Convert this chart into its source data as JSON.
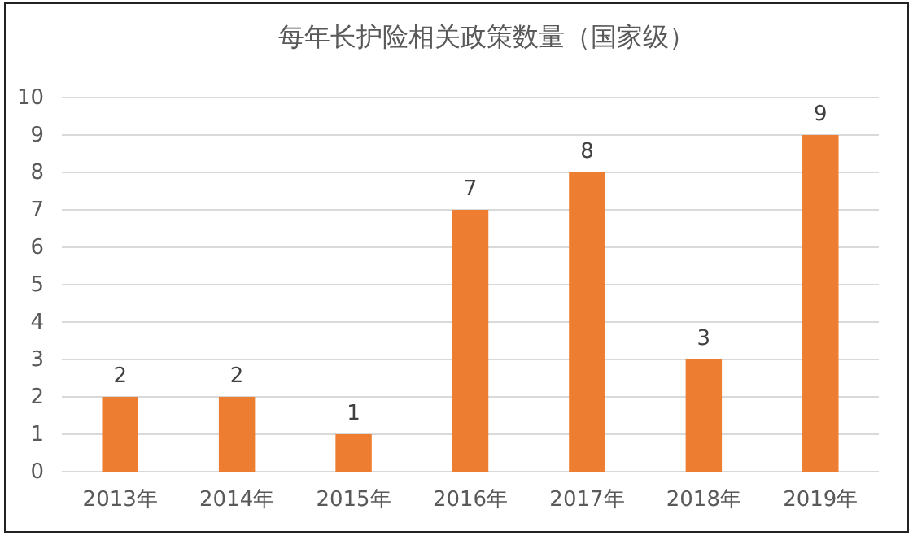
{
  "chart_data": {
    "type": "bar",
    "title": "每年长护险相关政策数量（国家级）",
    "categories": [
      "2013年",
      "2014年",
      "2015年",
      "2016年",
      "2017年",
      "2018年",
      "2019年"
    ],
    "values": [
      2,
      2,
      1,
      7,
      8,
      3,
      9
    ],
    "color": "#ed7d31",
    "ylim": [
      0,
      10
    ],
    "yticks": [
      0,
      1,
      2,
      3,
      4,
      5,
      6,
      7,
      8,
      9,
      10
    ],
    "grid": "y",
    "data_labels": true
  }
}
